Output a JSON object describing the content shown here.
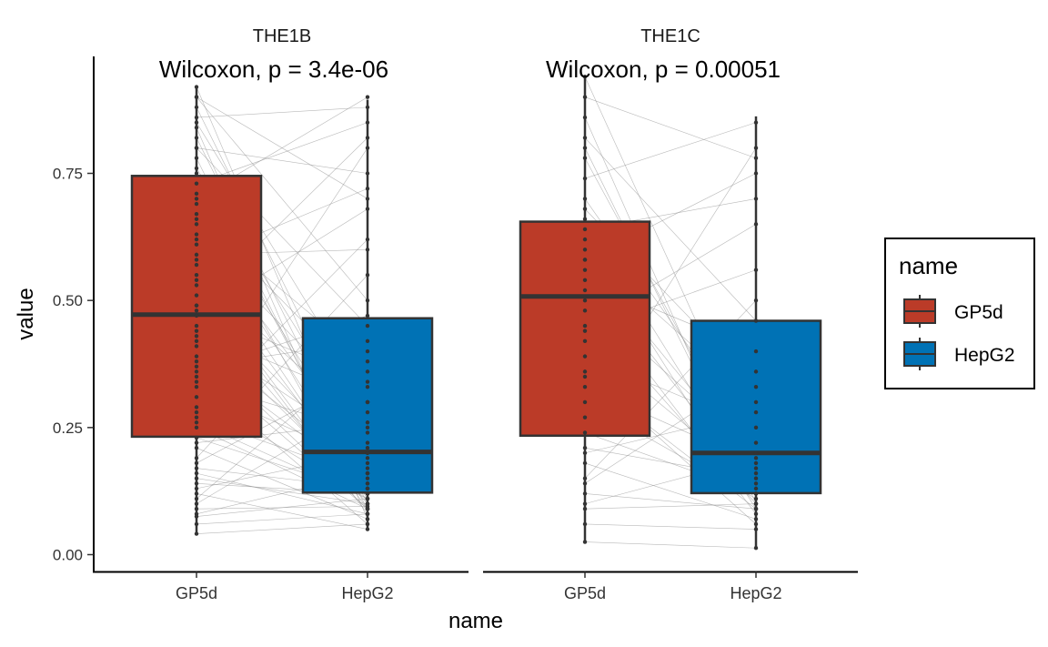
{
  "chart_data": {
    "type": "boxplot",
    "title": "",
    "xlabel": "name",
    "ylabel": "value",
    "ylim": [
      -0.03,
      0.95
    ],
    "y_ticks": [
      0.0,
      0.25,
      0.5,
      0.75
    ],
    "y_tick_labels": [
      "0.00",
      "0.25",
      "0.50",
      "0.75"
    ],
    "categories": [
      "GP5d",
      "HepG2"
    ],
    "legend": {
      "title": "name",
      "position": "right",
      "entries": [
        {
          "label": "GP5d",
          "color": "#BB3B28"
        },
        {
          "label": "HepG2",
          "color": "#0072B5"
        }
      ]
    },
    "grid": false,
    "panels": [
      {
        "strip_label": "THE1B",
        "annotation": "Wilcoxon, p = 3.4e-06",
        "boxes": [
          {
            "category": "GP5d",
            "q1": 0.232,
            "median": 0.472,
            "q3": 0.745,
            "min": 0.041,
            "max": 0.92
          },
          {
            "category": "HepG2",
            "q1": 0.122,
            "median": 0.202,
            "q3": 0.465,
            "min": 0.05,
            "max": 0.895
          }
        ],
        "pairs": [
          [
            0.041,
            0.06
          ],
          [
            0.06,
            0.08
          ],
          [
            0.075,
            0.11
          ],
          [
            0.09,
            0.095
          ],
          [
            0.1,
            0.3
          ],
          [
            0.12,
            0.05
          ],
          [
            0.13,
            0.2
          ],
          [
            0.15,
            0.1
          ],
          [
            0.17,
            0.13
          ],
          [
            0.19,
            0.55
          ],
          [
            0.21,
            0.07
          ],
          [
            0.23,
            0.12
          ],
          [
            0.25,
            0.09
          ],
          [
            0.27,
            0.15
          ],
          [
            0.29,
            0.8
          ],
          [
            0.31,
            0.11
          ],
          [
            0.33,
            0.18
          ],
          [
            0.35,
            0.06
          ],
          [
            0.37,
            0.42
          ],
          [
            0.39,
            0.14
          ],
          [
            0.41,
            0.09
          ],
          [
            0.43,
            0.21
          ],
          [
            0.45,
            0.12
          ],
          [
            0.47,
            0.68
          ],
          [
            0.49,
            0.1
          ],
          [
            0.51,
            0.16
          ],
          [
            0.53,
            0.08
          ],
          [
            0.55,
            0.25
          ],
          [
            0.57,
            0.12
          ],
          [
            0.59,
            0.6
          ],
          [
            0.61,
            0.11
          ],
          [
            0.63,
            0.19
          ],
          [
            0.65,
            0.13
          ],
          [
            0.67,
            0.33
          ],
          [
            0.69,
            0.09
          ],
          [
            0.71,
            0.17
          ],
          [
            0.73,
            0.85
          ],
          [
            0.75,
            0.12
          ],
          [
            0.76,
            0.22
          ],
          [
            0.78,
            0.1
          ],
          [
            0.8,
            0.45
          ],
          [
            0.82,
            0.14
          ],
          [
            0.84,
            0.07
          ],
          [
            0.86,
            0.88
          ],
          [
            0.88,
            0.2
          ],
          [
            0.9,
            0.5
          ],
          [
            0.92,
            0.13
          ],
          [
            0.66,
            0.38
          ],
          [
            0.58,
            0.72
          ],
          [
            0.44,
            0.3
          ],
          [
            0.36,
            0.47
          ],
          [
            0.28,
            0.62
          ],
          [
            0.18,
            0.36
          ],
          [
            0.11,
            0.4
          ],
          [
            0.8,
            0.75
          ],
          [
            0.7,
            0.9
          ],
          [
            0.62,
            0.28
          ],
          [
            0.54,
            0.09
          ],
          [
            0.49,
            0.82
          ],
          [
            0.42,
            0.16
          ],
          [
            0.34,
            0.24
          ],
          [
            0.26,
            0.11
          ],
          [
            0.16,
            0.08
          ],
          [
            0.08,
            0.16
          ],
          [
            0.85,
            0.3
          ],
          [
            0.9,
            0.7
          ],
          [
            0.48,
            0.34
          ],
          [
            0.38,
            0.09
          ],
          [
            0.22,
            0.26
          ],
          [
            0.14,
            0.12
          ]
        ]
      },
      {
        "strip_label": "THE1C",
        "annotation": "Wilcoxon, p = 0.00051",
        "boxes": [
          {
            "category": "GP5d",
            "q1": 0.234,
            "median": 0.508,
            "q3": 0.655,
            "min": 0.025,
            "max": 0.94
          },
          {
            "category": "HepG2",
            "q1": 0.121,
            "median": 0.2,
            "q3": 0.46,
            "min": 0.013,
            "max": 0.862
          }
        ],
        "pairs": [
          [
            0.025,
            0.013
          ],
          [
            0.06,
            0.05
          ],
          [
            0.09,
            0.1
          ],
          [
            0.12,
            0.09
          ],
          [
            0.15,
            0.5
          ],
          [
            0.18,
            0.07
          ],
          [
            0.21,
            0.15
          ],
          [
            0.24,
            0.12
          ],
          [
            0.27,
            0.8
          ],
          [
            0.3,
            0.11
          ],
          [
            0.33,
            0.18
          ],
          [
            0.36,
            0.06
          ],
          [
            0.39,
            0.25
          ],
          [
            0.42,
            0.14
          ],
          [
            0.45,
            0.65
          ],
          [
            0.48,
            0.1
          ],
          [
            0.5,
            0.2
          ],
          [
            0.52,
            0.08
          ],
          [
            0.54,
            0.4
          ],
          [
            0.56,
            0.13
          ],
          [
            0.58,
            0.17
          ],
          [
            0.6,
            0.3
          ],
          [
            0.62,
            0.09
          ],
          [
            0.64,
            0.7
          ],
          [
            0.66,
            0.12
          ],
          [
            0.7,
            0.22
          ],
          [
            0.74,
            0.85
          ],
          [
            0.78,
            0.16
          ],
          [
            0.82,
            0.46
          ],
          [
            0.86,
            0.1
          ],
          [
            0.9,
            0.78
          ],
          [
            0.94,
            0.2
          ],
          [
            0.68,
            0.33
          ],
          [
            0.44,
            0.56
          ],
          [
            0.2,
            0.28
          ],
          [
            0.1,
            0.19
          ],
          [
            0.8,
            0.12
          ],
          [
            0.58,
            0.75
          ],
          [
            0.35,
            0.09
          ],
          [
            0.14,
            0.36
          ]
        ]
      }
    ]
  }
}
